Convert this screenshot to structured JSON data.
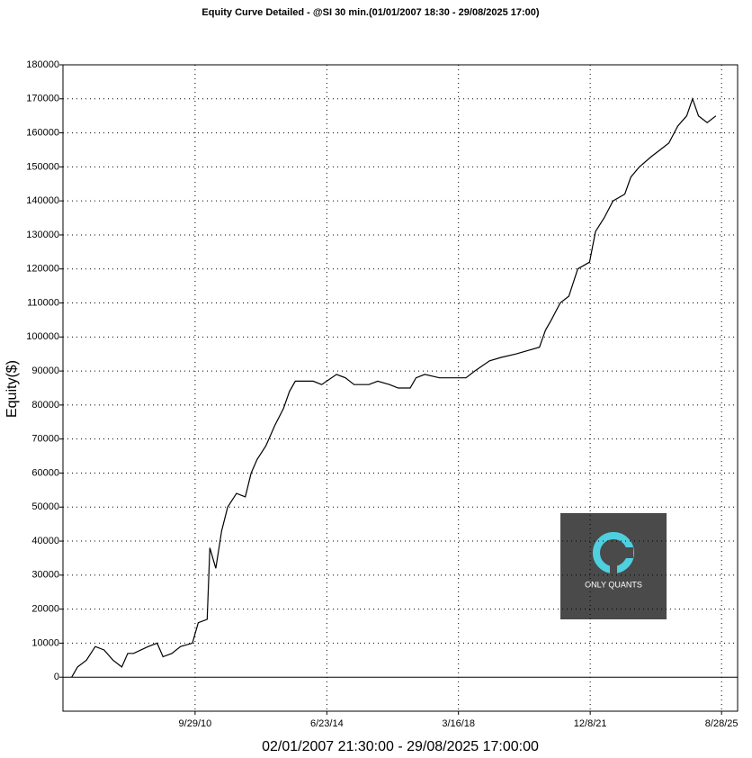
{
  "chart_data": {
    "type": "line",
    "title": "Equity Curve Detailed - @SI 30 min.(01/01/2007 18:30 - 29/08/2025 17:00)",
    "x_label": "02/01/2007 21:30:00 - 29/08/2025 17:00:00",
    "y_label": "Equity($)",
    "watermark": "ONLY QUANTS",
    "x": [
      "4/1/07",
      "6/1/07",
      "9/1/07",
      "12/1/07",
      "3/1/08",
      "6/1/08",
      "9/1/08",
      "11/1/08",
      "1/1/09",
      "6/1/09",
      "9/1/09",
      "11/1/09",
      "2/1/10",
      "5/1/10",
      "9/1/10",
      "11/1/10",
      "2/1/11",
      "3/1/11",
      "5/1/11",
      "7/1/11",
      "9/1/11",
      "12/1/11",
      "3/1/12",
      "5/1/12",
      "7/1/12",
      "10/1/12",
      "1/1/13",
      "4/1/13",
      "6/1/13",
      "8/1/13",
      "12/1/13",
      "2/1/14",
      "5/1/14",
      "10/1/14",
      "1/1/15",
      "4/1/15",
      "9/1/15",
      "12/1/15",
      "4/1/16",
      "7/1/16",
      "11/1/16",
      "1/1/17",
      "4/1/17",
      "9/1/17",
      "1/1/18",
      "6/1/18",
      "9/1/18",
      "2/1/19",
      "6/1/19",
      "11/1/19",
      "3/1/20",
      "7/1/20",
      "9/1/20",
      "11/1/20",
      "2/1/21",
      "5/1/21",
      "8/1/21",
      "12/1/21",
      "2/1/22",
      "5/1/22",
      "8/1/22",
      "12/1/22",
      "2/1/23",
      "5/1/23",
      "9/1/23",
      "12/1/23",
      "3/1/24",
      "6/1/24",
      "9/1/24",
      "11/1/24",
      "1/1/25",
      "4/1/25",
      "7/1/25"
    ],
    "series": [
      {
        "name": "Equity",
        "color": "#000000",
        "values": [
          0,
          3000,
          5000,
          9000,
          8000,
          5000,
          3000,
          7000,
          7000,
          9000,
          10000,
          6000,
          7000,
          9000,
          10000,
          16000,
          17000,
          38000,
          32000,
          43000,
          50000,
          54000,
          53000,
          60000,
          64000,
          68000,
          74000,
          79000,
          84000,
          87000,
          87000,
          87000,
          86000,
          89000,
          88000,
          86000,
          86000,
          87000,
          86000,
          85000,
          85000,
          88000,
          89000,
          88000,
          88000,
          88000,
          90000,
          93000,
          94000,
          95000,
          96000,
          97000,
          102000,
          105000,
          110000,
          112000,
          120000,
          122000,
          131000,
          135000,
          140000,
          142000,
          147000,
          150000,
          153000,
          155000,
          157000,
          162000,
          165000,
          170000,
          165000,
          163000,
          165000
        ]
      }
    ],
    "xlim": [
      "1/1/07",
      "2/10/26"
    ],
    "xticks": [
      "9/29/10",
      "6/23/14",
      "3/16/18",
      "12/8/21",
      "8/28/25"
    ],
    "ylim": [
      -10000,
      180000
    ],
    "yticks": [
      0,
      10000,
      20000,
      30000,
      40000,
      50000,
      60000,
      70000,
      80000,
      90000,
      100000,
      110000,
      120000,
      130000,
      140000,
      150000,
      160000,
      170000,
      180000
    ],
    "grid": true
  }
}
